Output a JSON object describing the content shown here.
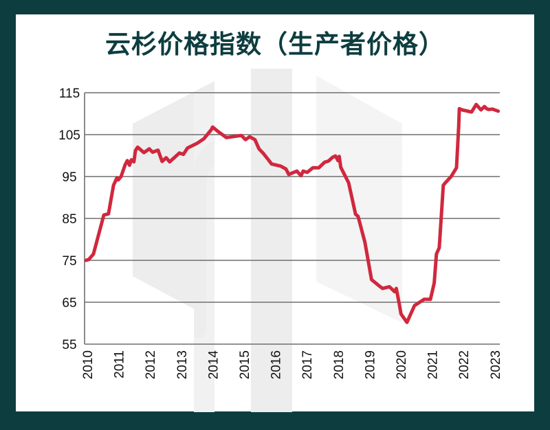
{
  "title": "云杉价格指数（生产者价格）",
  "colors": {
    "frame": "#0d3d3f",
    "panel": "#ffffff",
    "title": "#0d3d3f",
    "line": "#d0283e",
    "grid": "#6e6e6e",
    "watermark": "#ededed"
  },
  "chart_data": {
    "type": "line",
    "title": "云杉价格指数（生产者价格）",
    "xlabel": "",
    "ylabel": "",
    "ylim": [
      55,
      115
    ],
    "xlim": [
      2010,
      2023.2
    ],
    "yticks": [
      55,
      65,
      75,
      85,
      95,
      105,
      115
    ],
    "xticks": [
      "2010",
      "2011",
      "2012",
      "2013",
      "2014",
      "2015",
      "2016",
      "2017",
      "2018",
      "2019",
      "2020",
      "2021",
      "2022",
      "2023"
    ],
    "grid": "horizontal",
    "legend": "none",
    "series": [
      {
        "name": "云杉价格指数",
        "x": [
          2010.0,
          2010.09,
          2010.24,
          2010.57,
          2010.72,
          2010.88,
          2010.99,
          2011.03,
          2011.12,
          2011.25,
          2011.32,
          2011.39,
          2011.45,
          2011.53,
          2011.58,
          2011.65,
          2011.85,
          2012.02,
          2012.13,
          2012.3,
          2012.43,
          2012.56,
          2012.67,
          2012.98,
          2013.11,
          2013.24,
          2013.54,
          2013.76,
          2013.87,
          2014.0,
          2014.04,
          2014.24,
          2014.48,
          2014.96,
          2015.09,
          2015.22,
          2015.39,
          2015.52,
          2015.66,
          2015.81,
          2015.92,
          2016.21,
          2016.38,
          2016.47,
          2016.73,
          2016.86,
          2016.93,
          2017.06,
          2017.24,
          2017.43,
          2017.61,
          2017.74,
          2017.87,
          2017.96,
          2018.04,
          2018.08,
          2018.13,
          2018.38,
          2018.6,
          2018.68,
          2018.9,
          2019.11,
          2019.37,
          2019.46,
          2019.68,
          2019.85,
          2019.9,
          2019.99,
          2020.05,
          2020.24,
          2020.48,
          2020.79,
          2020.99,
          2021.11,
          2021.18,
          2021.27,
          2021.4,
          2021.45,
          2021.65,
          2021.82,
          2021.89,
          2021.91,
          2022.0,
          2022.3,
          2022.45,
          2022.6,
          2022.71,
          2022.78,
          2022.84,
          2022.97,
          2023.15
        ],
        "values": [
          75.0,
          75.2,
          76.5,
          85.8,
          86.1,
          92.9,
          94.7,
          94.2,
          95.0,
          97.8,
          98.8,
          97.7,
          99.0,
          98.5,
          101.2,
          102.0,
          100.7,
          101.6,
          100.8,
          101.3,
          98.6,
          99.5,
          98.5,
          100.6,
          100.3,
          101.8,
          102.9,
          104.0,
          105.0,
          106.2,
          106.8,
          105.6,
          104.3,
          104.8,
          103.8,
          104.5,
          103.8,
          101.6,
          100.5,
          99.1,
          98.0,
          97.5,
          96.8,
          95.5,
          96.3,
          95.2,
          96.3,
          96.0,
          97.1,
          97.1,
          98.4,
          98.7,
          99.6,
          99.9,
          98.8,
          99.8,
          97.2,
          93.5,
          86.0,
          85.5,
          79.3,
          70.4,
          68.8,
          68.3,
          68.7,
          67.5,
          68.3,
          64.8,
          62.2,
          60.2,
          64.2,
          65.7,
          65.7,
          69.6,
          76.5,
          78.0,
          92.9,
          93.4,
          95.0,
          97.1,
          107.0,
          111.2,
          110.9,
          110.4,
          112.2,
          110.9,
          111.7,
          111.2,
          111.0,
          111.1,
          110.6
        ]
      }
    ]
  }
}
